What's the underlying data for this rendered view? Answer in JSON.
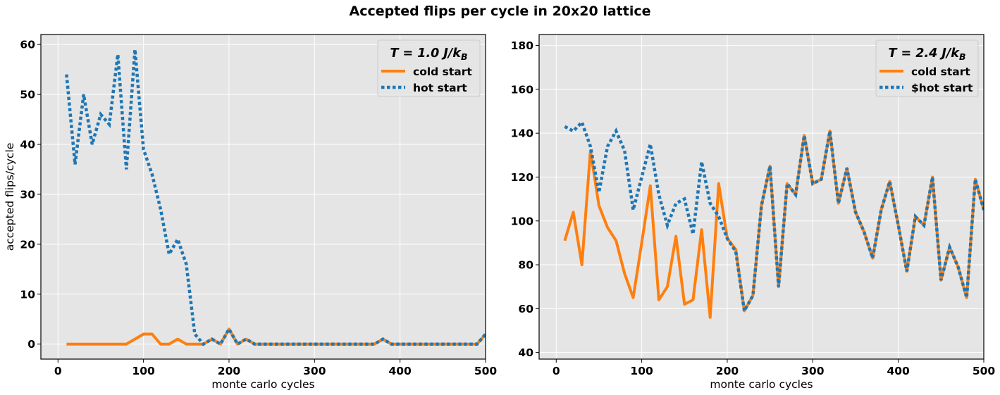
{
  "suptitle": "Accepted flips per cycle in 20x20 lattice",
  "colors": {
    "cold": "#ff7f0e",
    "hot": "#1f77b4",
    "plot_bg": "#e5e5e5",
    "grid": "#ffffff"
  },
  "chart_data": [
    {
      "type": "line",
      "legend_title": {
        "main": "T = 1.0 J/k",
        "sub": "B"
      },
      "legend_position": "top-right",
      "xlabel": "monte carlo cycles",
      "ylabel": "accepted flips/cycle",
      "xlim": [
        -20,
        500
      ],
      "ylim": [
        -3,
        62
      ],
      "xticks": [
        0,
        100,
        200,
        300,
        400,
        500
      ],
      "yticks": [
        0,
        10,
        20,
        30,
        40,
        50,
        60
      ],
      "grid": true,
      "x": [
        10,
        20,
        30,
        40,
        50,
        60,
        70,
        80,
        90,
        100,
        110,
        120,
        130,
        140,
        150,
        160,
        170,
        180,
        190,
        200,
        210,
        220,
        230,
        240,
        250,
        260,
        270,
        280,
        290,
        300,
        310,
        320,
        330,
        340,
        350,
        360,
        370,
        380,
        390,
        400,
        410,
        420,
        430,
        440,
        450,
        460,
        470,
        480,
        490,
        500
      ],
      "series": [
        {
          "name": "cold start",
          "style": "solid",
          "values": [
            0,
            0,
            0,
            0,
            0,
            0,
            0,
            0,
            1,
            2,
            2,
            0,
            0,
            1,
            0,
            0,
            0,
            1,
            0,
            3,
            0,
            1,
            0,
            0,
            0,
            0,
            0,
            0,
            0,
            0,
            0,
            0,
            0,
            0,
            0,
            0,
            0,
            1,
            0,
            0,
            0,
            0,
            0,
            0,
            0,
            0,
            0,
            0,
            0,
            2
          ]
        },
        {
          "name": "hot start",
          "style": "dotted",
          "values": [
            54,
            36,
            50,
            40,
            46,
            44,
            58,
            35,
            59,
            39,
            34,
            27,
            18,
            21,
            16,
            2,
            0,
            1,
            0,
            3,
            0,
            1,
            0,
            0,
            0,
            0,
            0,
            0,
            0,
            0,
            0,
            0,
            0,
            0,
            0,
            0,
            0,
            1,
            0,
            0,
            0,
            0,
            0,
            0,
            0,
            0,
            0,
            0,
            0,
            2
          ]
        }
      ]
    },
    {
      "type": "line",
      "legend_title": {
        "main": "T = 2.4 J/k",
        "sub": "B"
      },
      "legend_position": "top-right",
      "xlabel": "monte carlo cycles",
      "ylabel": "",
      "xlim": [
        -20,
        500
      ],
      "ylim": [
        37,
        185
      ],
      "xticks": [
        0,
        100,
        200,
        300,
        400,
        500
      ],
      "yticks": [
        40,
        60,
        80,
        100,
        120,
        140,
        160,
        180
      ],
      "grid": true,
      "x": [
        10,
        20,
        30,
        40,
        50,
        60,
        70,
        80,
        90,
        100,
        110,
        120,
        130,
        140,
        150,
        160,
        170,
        180,
        190,
        200,
        210,
        220,
        230,
        240,
        250,
        260,
        270,
        280,
        290,
        300,
        310,
        320,
        330,
        340,
        350,
        360,
        370,
        380,
        390,
        400,
        410,
        420,
        430,
        440,
        450,
        460,
        470,
        480,
        490,
        500
      ],
      "series": [
        {
          "name": "cold start",
          "style": "solid",
          "values": [
            91,
            104,
            80,
            132,
            107,
            97,
            91,
            76,
            65,
            90,
            116,
            64,
            70,
            93,
            62,
            64,
            96,
            56,
            117,
            92,
            87,
            59,
            66,
            107,
            125,
            70,
            117,
            112,
            139,
            117,
            119,
            141,
            108,
            124,
            104,
            95,
            83,
            105,
            118,
            98,
            77,
            102,
            98,
            120,
            73,
            88,
            79,
            65,
            119,
            105
          ]
        },
        {
          "name": "$hot start",
          "style": "dotted",
          "values": [
            143,
            141,
            145,
            134,
            113,
            134,
            141,
            132,
            105,
            120,
            135,
            112,
            98,
            108,
            110,
            94,
            127,
            108,
            102,
            92,
            86,
            59,
            66,
            107,
            125,
            70,
            117,
            112,
            139,
            117,
            119,
            141,
            108,
            124,
            104,
            95,
            83,
            105,
            118,
            98,
            77,
            102,
            98,
            120,
            73,
            88,
            79,
            65,
            119,
            105
          ]
        }
      ]
    }
  ]
}
